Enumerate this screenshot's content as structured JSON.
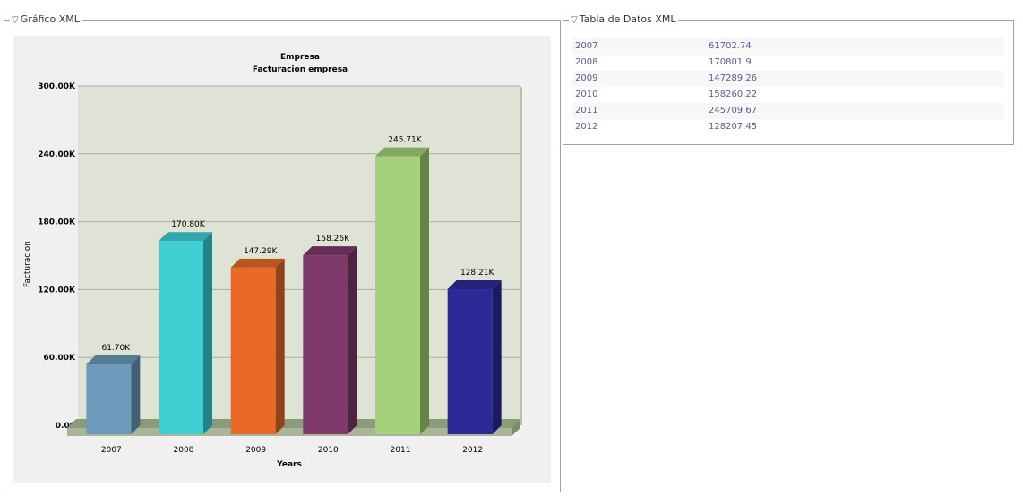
{
  "panels": {
    "chart_legend": "Gráfico XML",
    "table_legend": "Tabla de Datos XML"
  },
  "icons": {
    "collapse": "collapse-triangle-icon"
  },
  "table": {
    "rows": [
      [
        "2007",
        "61702.74"
      ],
      [
        "2008",
        "170801.9"
      ],
      [
        "2009",
        "147289.26"
      ],
      [
        "2010",
        "158260.22"
      ],
      [
        "2011",
        "245709.67"
      ],
      [
        "2012",
        "128207.45"
      ]
    ]
  },
  "chart_data": {
    "type": "bar",
    "title": "Empresa",
    "subtitle": "Facturacion empresa",
    "xlabel": "Years",
    "ylabel": "Facturacion",
    "categories": [
      "2007",
      "2008",
      "2009",
      "2010",
      "2011",
      "2012"
    ],
    "values": [
      61702.74,
      170801.9,
      147289.26,
      158260.22,
      245709.67,
      128207.45
    ],
    "data_labels": [
      "61.70K",
      "170.80K",
      "147.29K",
      "158.26K",
      "245.71K",
      "128.21K"
    ],
    "ylim": [
      0,
      300000
    ],
    "yticks": [
      0,
      60000,
      120000,
      180000,
      240000,
      300000
    ],
    "ytick_labels": [
      "0.00",
      "60.00K",
      "120.00K",
      "180.00K",
      "240.00K",
      "300.00K"
    ],
    "colors": [
      "#6b9aba",
      "#3fcfd3",
      "#e96a26",
      "#7f3a6b",
      "#a3d27b",
      "#2d2a98"
    ],
    "plot_background": "#dfe3d5",
    "grid": true,
    "style": "3d"
  }
}
